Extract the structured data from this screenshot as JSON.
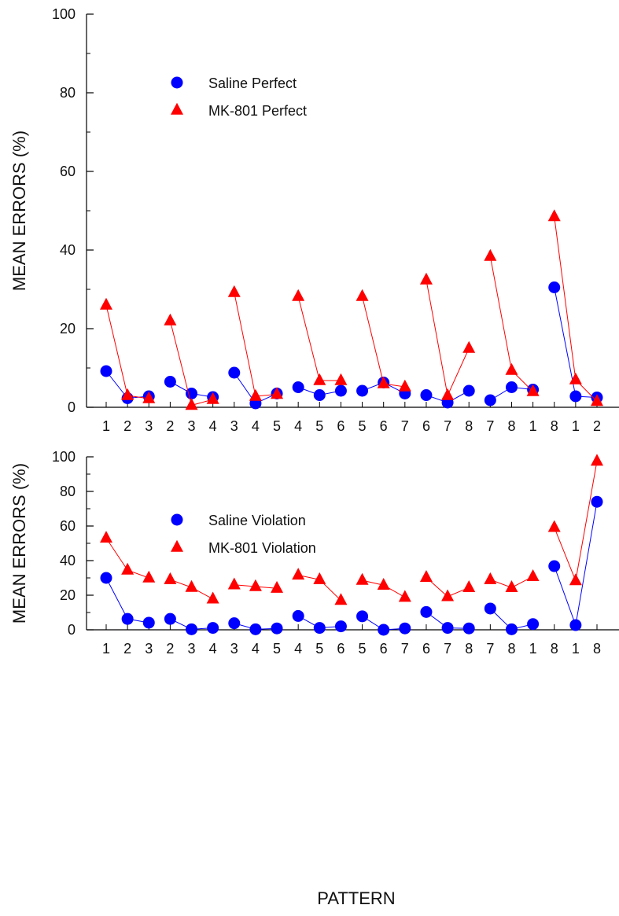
{
  "chart_data": [
    {
      "type": "line",
      "categories": [
        "1",
        "2",
        "3",
        "2",
        "3",
        "4",
        "3",
        "4",
        "5",
        "4",
        "5",
        "6",
        "5",
        "6",
        "7",
        "6",
        "7",
        "8",
        "7",
        "8",
        "1",
        "8",
        "1",
        "2"
      ],
      "ylabel": "MEAN ERRORS (%)",
      "ylim": [
        0,
        100
      ],
      "yticks": [
        0,
        20,
        40,
        60,
        80,
        100
      ],
      "grid": false,
      "legend_position": "top-left",
      "series": [
        {
          "name": "Saline Perfect",
          "color": "#0000ff",
          "marker": "circle",
          "values": [
            9.2,
            2.3,
            2.8,
            6.5,
            3.5,
            2.6,
            8.8,
            1.0,
            3.5,
            5.1,
            3.1,
            4.2,
            4.2,
            6.3,
            3.5,
            3.1,
            1.2,
            4.2,
            1.8,
            5.1,
            4.5,
            30.5,
            2.8,
            2.5
          ],
          "segments": [
            [
              0,
              2
            ],
            [
              3,
              5
            ],
            [
              6,
              8
            ],
            [
              9,
              11
            ],
            [
              12,
              14
            ],
            [
              15,
              17
            ],
            [
              18,
              20
            ],
            [
              21,
              23
            ]
          ]
        },
        {
          "name": "MK-801 Perfect",
          "color": "#ff0000",
          "marker": "triangle",
          "values": [
            26.0,
            3.0,
            2.2,
            22.0,
            0.5,
            2.0,
            29.2,
            2.8,
            3.3,
            28.2,
            6.8,
            6.8,
            28.2,
            6.0,
            5.2,
            32.4,
            3.0,
            15.0,
            38.4,
            9.4,
            4.0,
            48.5,
            7.0,
            1.5
          ],
          "segments": [
            [
              0,
              2
            ],
            [
              3,
              5
            ],
            [
              6,
              8
            ],
            [
              9,
              11
            ],
            [
              12,
              14
            ],
            [
              15,
              17
            ],
            [
              18,
              20
            ],
            [
              21,
              23
            ]
          ]
        }
      ]
    },
    {
      "type": "line",
      "categories": [
        "1",
        "2",
        "3",
        "2",
        "3",
        "4",
        "3",
        "4",
        "5",
        "4",
        "5",
        "6",
        "5",
        "6",
        "7",
        "6",
        "7",
        "8",
        "7",
        "8",
        "1",
        "8",
        "1",
        "8"
      ],
      "xlabel": "PATTERN",
      "ylabel": "MEAN ERRORS (%)",
      "ylim": [
        0,
        100
      ],
      "yticks": [
        0,
        20,
        40,
        60,
        80,
        100
      ],
      "grid": false,
      "legend_position": "top-left",
      "series": [
        {
          "name": "Saline Violation",
          "color": "#0000ff",
          "marker": "circle",
          "values": [
            30.0,
            6.3,
            4.1,
            6.3,
            0.3,
            1.1,
            3.8,
            0.3,
            0.8,
            8.0,
            1.1,
            2.0,
            7.8,
            0.0,
            0.8,
            10.3,
            1.1,
            0.8,
            12.3,
            0.3,
            3.3,
            36.8,
            2.7,
            74.0
          ],
          "segments": [
            [
              0,
              2
            ],
            [
              3,
              5
            ],
            [
              6,
              8
            ],
            [
              9,
              11
            ],
            [
              12,
              14
            ],
            [
              15,
              17
            ],
            [
              18,
              20
            ],
            [
              21,
              23
            ]
          ]
        },
        {
          "name": "MK-801 Violation",
          "color": "#ff0000",
          "marker": "triangle",
          "values": [
            53.0,
            34.5,
            30.0,
            29.0,
            24.5,
            17.8,
            26.0,
            25.0,
            24.0,
            31.6,
            29.0,
            17.0,
            28.6,
            25.8,
            18.8,
            30.3,
            19.2,
            24.4,
            29.0,
            24.4,
            30.8,
            59.2,
            28.4,
            97.5
          ],
          "segments": [
            [
              0,
              2
            ],
            [
              3,
              5
            ],
            [
              6,
              8
            ],
            [
              9,
              11
            ],
            [
              12,
              14
            ],
            [
              15,
              17
            ],
            [
              18,
              20
            ],
            [
              21,
              23
            ]
          ]
        }
      ]
    }
  ]
}
